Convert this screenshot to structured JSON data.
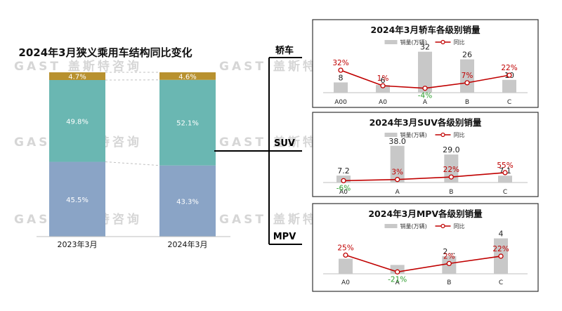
{
  "watermark": "GAST 盖斯特咨询",
  "chart_data": [
    {
      "id": "structure",
      "type": "bar",
      "stacked": true,
      "percent": true,
      "title": "2024年3月狭义乘用车结构同比变化",
      "categories": [
        "2023年3月",
        "2024年3月"
      ],
      "series": [
        {
          "segment": "bottom",
          "color": "#8aa4c6",
          "values": [
            45.5,
            43.3
          ],
          "labels": [
            "45.5%",
            "43.3%"
          ]
        },
        {
          "segment": "middle",
          "color": "#6ab7b2",
          "values": [
            49.8,
            52.1
          ],
          "labels": [
            "49.8%",
            "52.1%"
          ]
        },
        {
          "segment": "top",
          "color": "#b8912f",
          "values": [
            4.7,
            4.6
          ],
          "labels": [
            "4.7%",
            "4.6%"
          ]
        }
      ],
      "ylim": [
        0,
        100
      ]
    },
    {
      "id": "sedan",
      "type": "bar",
      "title": "2024年3月轿车各级别销量",
      "branch_label": "轿车",
      "categories": [
        "A00",
        "A0",
        "A",
        "B",
        "C"
      ],
      "series": [
        {
          "name": "销量(万辆)",
          "kind": "bar",
          "color": "#c8c8c8",
          "values": [
            8,
            6,
            32,
            26,
            10
          ],
          "labels": [
            "8",
            "6",
            "32",
            "26",
            "10"
          ]
        },
        {
          "name": "同比",
          "kind": "line",
          "color": "#c00000",
          "values": [
            32,
            1,
            -4,
            7,
            22
          ],
          "labels": [
            "32%",
            "1%",
            "-4%",
            "7%",
            "22%"
          ],
          "label_colors": [
            "#c00000",
            "#c00000",
            "#2e9e2e",
            "#c00000",
            "#c00000"
          ]
        }
      ],
      "bar_max": 34,
      "line_range": [
        -10,
        60
      ]
    },
    {
      "id": "suv",
      "type": "bar",
      "title": "2024年3月SUV各级别销量",
      "branch_label": "SUV",
      "categories": [
        "A0",
        "A",
        "B",
        "C"
      ],
      "series": [
        {
          "name": "销量(万辆)",
          "kind": "bar",
          "color": "#c8c8c8",
          "values": [
            7.2,
            38.0,
            29.0,
            7.1
          ],
          "labels": [
            "7.2",
            "38.0",
            "29.0",
            "7.1"
          ]
        },
        {
          "name": "同比",
          "kind": "line",
          "color": "#c00000",
          "values": [
            -6,
            3,
            22,
            55
          ],
          "labels": [
            "-6%",
            "3%",
            "22%",
            "55%"
          ],
          "label_colors": [
            "#2e9e2e",
            "#c00000",
            "#c00000",
            "#c00000"
          ]
        }
      ],
      "bar_max": 40,
      "line_range": [
        -20,
        230
      ]
    },
    {
      "id": "mpv",
      "type": "bar",
      "title": "2024年3月MPV各级别销量",
      "branch_label": "MPV",
      "categories": [
        "A0",
        "A",
        "B",
        "C"
      ],
      "series": [
        {
          "name": "销量(万辆)",
          "kind": "bar",
          "color": "#c8c8c8",
          "values": [
            1.7,
            1.0,
            2,
            4
          ],
          "labels": [
            "",
            "",
            "2…",
            "4"
          ]
        },
        {
          "name": "同比",
          "kind": "line",
          "color": "#c00000",
          "values": [
            25,
            -21,
            2,
            22
          ],
          "labels": [
            "25%",
            "-21%",
            "2%",
            "22%"
          ],
          "label_colors": [
            "#c00000",
            "#2e9e2e",
            "#c00000",
            "#c00000"
          ]
        }
      ],
      "bar_max": 4.6,
      "line_range": [
        -30,
        70
      ]
    }
  ]
}
